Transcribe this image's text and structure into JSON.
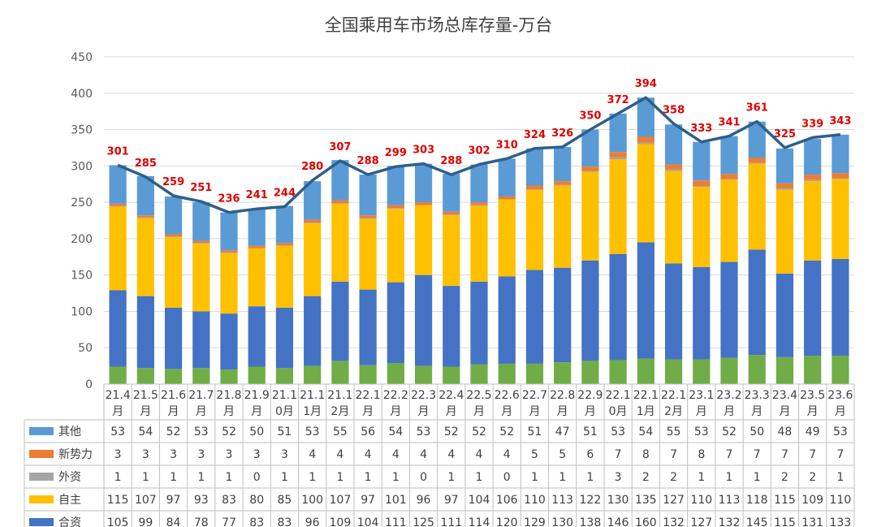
{
  "chart_data": {
    "type": "bar",
    "stacked": true,
    "title": "全国乘用车市场总库存量-万台",
    "xlabel": "",
    "ylabel": "",
    "ylim": [
      0,
      450
    ],
    "yticks": [
      "0",
      "50",
      "100",
      "150",
      "200",
      "250",
      "300",
      "350",
      "400",
      "450"
    ],
    "grid": true,
    "legend_placement": "data-table-left",
    "categories": [
      [
        "21.4",
        "月"
      ],
      [
        "21.5",
        "月"
      ],
      [
        "21.6",
        "月"
      ],
      [
        "21.7",
        "月"
      ],
      [
        "21.8",
        "月"
      ],
      [
        "21.9",
        "月"
      ],
      [
        "21.1",
        "0月"
      ],
      [
        "21.1",
        "1月"
      ],
      [
        "21.1",
        "2月"
      ],
      [
        "22.1",
        "月"
      ],
      [
        "22.2",
        "月"
      ],
      [
        "22.3",
        "月"
      ],
      [
        "22.4",
        "月"
      ],
      [
        "22.5",
        "月"
      ],
      [
        "22.6",
        "月"
      ],
      [
        "22.7",
        "月"
      ],
      [
        "22.8",
        "月"
      ],
      [
        "22.9",
        "月"
      ],
      [
        "22.1",
        "0月"
      ],
      [
        "22.1",
        "1月"
      ],
      [
        "22.1",
        "2月"
      ],
      [
        "23.1",
        "月"
      ],
      [
        "23.2",
        "月"
      ],
      [
        "23.3",
        "月"
      ],
      [
        "23.4",
        "月"
      ],
      [
        "23.5",
        "月"
      ],
      [
        "23.6",
        "月"
      ]
    ],
    "bottom_segment_values": [
      24,
      22,
      21,
      22,
      20,
      24,
      22,
      25,
      32,
      26,
      29,
      25,
      24,
      27,
      28,
      28,
      30,
      32,
      33,
      35,
      34,
      34,
      36,
      40,
      37,
      39,
      39
    ],
    "bottom_segment_color": "#70ad47",
    "series": [
      {
        "name": "合资",
        "color": "#4472c4",
        "values": [
          105,
          99,
          84,
          78,
          77,
          83,
          83,
          96,
          109,
          104,
          111,
          125,
          111,
          114,
          120,
          129,
          130,
          138,
          146,
          160,
          132,
          127,
          132,
          145,
          115,
          131,
          133
        ]
      },
      {
        "name": "自主",
        "color": "#ffc000",
        "values": [
          115,
          107,
          97,
          93,
          83,
          80,
          85,
          100,
          107,
          97,
          101,
          96,
          97,
          104,
          106,
          110,
          113,
          122,
          130,
          135,
          127,
          110,
          113,
          118,
          115,
          109,
          110
        ]
      },
      {
        "name": "外资",
        "color": "#a5a5a5",
        "values": [
          1,
          1,
          1,
          1,
          1,
          0,
          1,
          1,
          1,
          1,
          1,
          0,
          1,
          1,
          0,
          1,
          1,
          1,
          3,
          2,
          2,
          1,
          1,
          1,
          2,
          2,
          1
        ]
      },
      {
        "name": "新势力",
        "color": "#ed7d31",
        "values": [
          3,
          3,
          3,
          3,
          3,
          3,
          3,
          4,
          4,
          4,
          4,
          4,
          4,
          4,
          4,
          5,
          5,
          6,
          7,
          8,
          7,
          8,
          7,
          7,
          7,
          7,
          7
        ]
      },
      {
        "name": "其他",
        "color": "#5b9bd5",
        "values": [
          53,
          54,
          52,
          53,
          52,
          50,
          51,
          53,
          55,
          56,
          54,
          53,
          52,
          52,
          52,
          51,
          47,
          51,
          53,
          54,
          55,
          53,
          52,
          50,
          48,
          49,
          53
        ]
      }
    ],
    "total_line": {
      "color": "#2e5f8a",
      "label_color": "#e00000",
      "values": [
        301,
        285,
        259,
        251,
        236,
        241,
        244,
        280,
        307,
        288,
        299,
        303,
        288,
        302,
        310,
        324,
        326,
        350,
        372,
        394,
        358,
        333,
        341,
        361,
        325,
        339,
        343
      ]
    },
    "table_rows_order": [
      "其他",
      "新势力",
      "外资",
      "自主",
      "合资"
    ]
  }
}
